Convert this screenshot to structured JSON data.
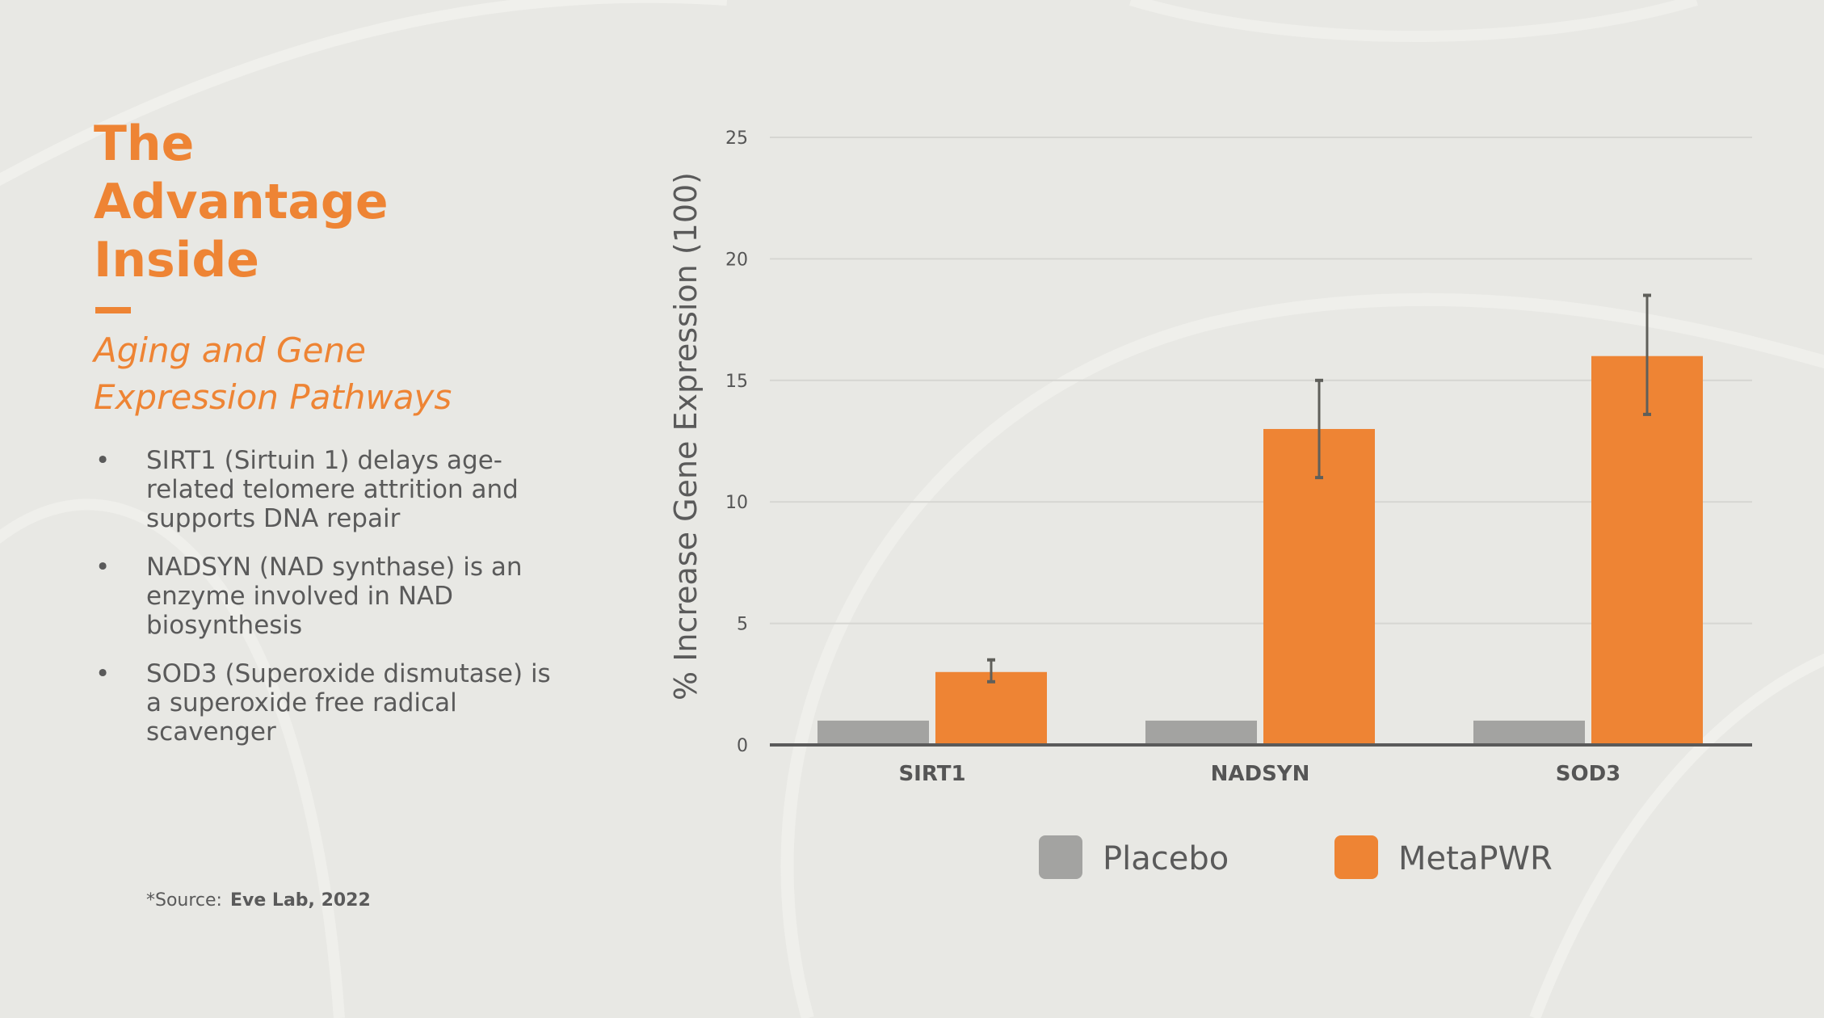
{
  "slide": {
    "title_lines": [
      "The",
      "Advantage",
      "Inside"
    ],
    "subtitle_lines": [
      "Aging and Gene",
      "Expression Pathways"
    ],
    "bullets": [
      "SIRT1 (Sirtuin 1) delays age-related telomere attrition and supports DNA repair",
      "NADSYN (NAD synthase) is an enzyme involved in NAD biosynthesis",
      "SOD3 (Superoxide dismutase) is a superoxide free radical scavenger"
    ],
    "bullet_char": "•",
    "source_label": "*Source:",
    "source_value": "Eve Lab, 2022"
  },
  "colors": {
    "accent": "#ee8434",
    "placebo": "#a3a3a1",
    "text": "#5a5a5a",
    "background": "#e8e8e4"
  },
  "chart_data": {
    "type": "bar",
    "categories": [
      "SIRT1",
      "NADSYN",
      "SOD3"
    ],
    "series": [
      {
        "name": "Placebo",
        "color": "#a3a3a1",
        "values": [
          1,
          1,
          1
        ]
      },
      {
        "name": "MetaPWR",
        "color": "#ee8434",
        "values": [
          3,
          13,
          16
        ],
        "error_low": [
          2.6,
          11,
          13.6
        ],
        "error_high": [
          3.5,
          15,
          18.5
        ]
      }
    ],
    "ylabel": "% Increase Gene Expression (100)",
    "xlabel": "",
    "ylim": [
      0,
      25
    ],
    "yticks": [
      0,
      5,
      10,
      15,
      20,
      25
    ],
    "grid": true,
    "legend_position": "bottom"
  }
}
